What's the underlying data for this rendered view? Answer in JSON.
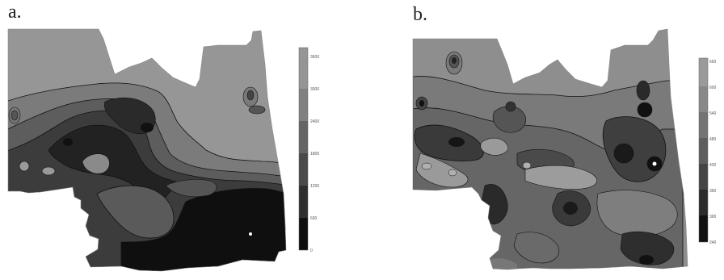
{
  "panels": [
    {
      "label": "a.",
      "legend_ticks": [
        "0",
        "600",
        "1200",
        "1800",
        "2400",
        "3000",
        "3600"
      ],
      "legend_colors": [
        "#0e0e0e",
        "#2e2e2e",
        "#4a4a4a",
        "#656565",
        "#808080",
        "#959595"
      ]
    },
    {
      "label": "b.",
      "legend_ticks": [
        "240",
        "300",
        "360",
        "420",
        "480",
        "540",
        "600",
        "660"
      ],
      "legend_colors": [
        "#111111",
        "#2c2c2c",
        "#454545",
        "#5e5e5e",
        "#747474",
        "#888888",
        "#9a9a9a"
      ]
    }
  ]
}
